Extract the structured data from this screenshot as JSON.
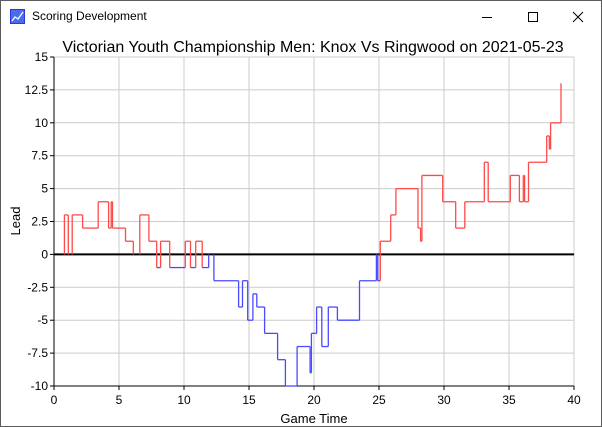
{
  "window": {
    "title": "Scoring Development",
    "icon": "chart-app-icon",
    "buttons": {
      "minimize": "minimize-icon",
      "maximize": "maximize-icon",
      "close": "close-icon"
    }
  },
  "chart_data": {
    "type": "line",
    "title": "Victorian Youth Championship Men: Knox Vs Ringwood on 2021-05-23",
    "xlabel": "Game Time",
    "ylabel": "Lead",
    "xlim": [
      0,
      40
    ],
    "ylim": [
      -10,
      15
    ],
    "xticks": [
      0,
      5,
      10,
      15,
      20,
      25,
      30,
      35,
      40
    ],
    "yticks": [
      -10,
      -7.5,
      -5,
      -2.5,
      0,
      2.5,
      5,
      7.5,
      10,
      12.5,
      15
    ],
    "grid": true,
    "positive_color": "#ff4a4a",
    "negative_color": "#4a4aff",
    "zero_line_color": "#000000",
    "points": [
      [
        0,
        0
      ],
      [
        0.8,
        0
      ],
      [
        0.8,
        3
      ],
      [
        1.1,
        3
      ],
      [
        1.1,
        0
      ],
      [
        1.4,
        0
      ],
      [
        1.4,
        3
      ],
      [
        2.2,
        3
      ],
      [
        2.2,
        2
      ],
      [
        3.4,
        2
      ],
      [
        3.4,
        4
      ],
      [
        4.2,
        4
      ],
      [
        4.2,
        2
      ],
      [
        4.4,
        2
      ],
      [
        4.4,
        4
      ],
      [
        4.5,
        4
      ],
      [
        4.5,
        2
      ],
      [
        5.5,
        2
      ],
      [
        5.5,
        1
      ],
      [
        6.1,
        1
      ],
      [
        6.1,
        0
      ],
      [
        6.6,
        0
      ],
      [
        6.6,
        3
      ],
      [
        7.3,
        3
      ],
      [
        7.3,
        1
      ],
      [
        7.9,
        1
      ],
      [
        7.9,
        -1
      ],
      [
        8.2,
        -1
      ],
      [
        8.2,
        1
      ],
      [
        8.9,
        1
      ],
      [
        8.9,
        -1
      ],
      [
        10.1,
        -1
      ],
      [
        10.1,
        1
      ],
      [
        10.5,
        1
      ],
      [
        10.5,
        -1
      ],
      [
        10.9,
        -1
      ],
      [
        10.9,
        1
      ],
      [
        11.4,
        1
      ],
      [
        11.4,
        -1
      ],
      [
        11.9,
        -1
      ],
      [
        11.9,
        0
      ],
      [
        12.3,
        0
      ],
      [
        12.3,
        -2
      ],
      [
        14.2,
        -2
      ],
      [
        14.2,
        -4
      ],
      [
        14.5,
        -4
      ],
      [
        14.5,
        -2
      ],
      [
        14.9,
        -2
      ],
      [
        14.9,
        -5
      ],
      [
        15.3,
        -5
      ],
      [
        15.3,
        -3
      ],
      [
        15.6,
        -3
      ],
      [
        15.6,
        -4
      ],
      [
        16.2,
        -4
      ],
      [
        16.2,
        -6
      ],
      [
        17.2,
        -6
      ],
      [
        17.2,
        -8
      ],
      [
        17.8,
        -8
      ],
      [
        17.8,
        -10
      ],
      [
        18.7,
        -10
      ],
      [
        18.7,
        -7
      ],
      [
        19.7,
        -7
      ],
      [
        19.7,
        -9
      ],
      [
        19.8,
        -9
      ],
      [
        19.8,
        -6
      ],
      [
        20.2,
        -6
      ],
      [
        20.2,
        -4
      ],
      [
        20.6,
        -4
      ],
      [
        20.6,
        -7
      ],
      [
        21.1,
        -7
      ],
      [
        21.1,
        -4
      ],
      [
        21.8,
        -4
      ],
      [
        21.8,
        -5
      ],
      [
        23.5,
        -5
      ],
      [
        23.5,
        -2
      ],
      [
        24.8,
        -2
      ],
      [
        24.8,
        0
      ],
      [
        24.9,
        0
      ],
      [
        24.9,
        -2
      ],
      [
        25.1,
        -2
      ],
      [
        25.1,
        1
      ],
      [
        25.9,
        1
      ],
      [
        25.9,
        3
      ],
      [
        26.3,
        3
      ],
      [
        26.3,
        5
      ],
      [
        28.0,
        5
      ],
      [
        28.0,
        2
      ],
      [
        28.2,
        2
      ],
      [
        28.2,
        1
      ],
      [
        28.3,
        1
      ],
      [
        28.3,
        6
      ],
      [
        29.9,
        6
      ],
      [
        29.9,
        4
      ],
      [
        30.9,
        4
      ],
      [
        30.9,
        2
      ],
      [
        31.6,
        2
      ],
      [
        31.6,
        4
      ],
      [
        33.1,
        4
      ],
      [
        33.1,
        7
      ],
      [
        33.4,
        7
      ],
      [
        33.4,
        4
      ],
      [
        35.1,
        4
      ],
      [
        35.1,
        6
      ],
      [
        35.8,
        6
      ],
      [
        35.8,
        4
      ],
      [
        36.1,
        4
      ],
      [
        36.1,
        6
      ],
      [
        36.2,
        6
      ],
      [
        36.2,
        4
      ],
      [
        36.5,
        4
      ],
      [
        36.5,
        7
      ],
      [
        37.9,
        7
      ],
      [
        37.9,
        9
      ],
      [
        38.1,
        9
      ],
      [
        38.1,
        8
      ],
      [
        38.2,
        8
      ],
      [
        38.2,
        10
      ],
      [
        39.0,
        10
      ],
      [
        39.0,
        13
      ]
    ]
  }
}
